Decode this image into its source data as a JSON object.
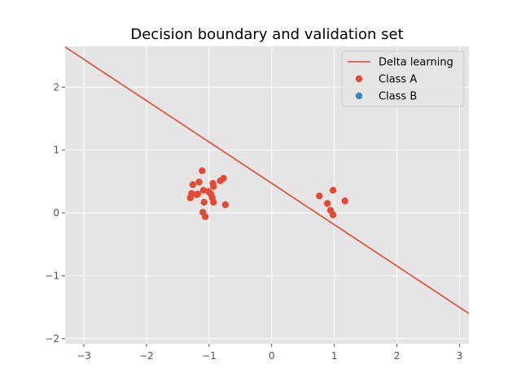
{
  "chart_data": {
    "type": "scatter",
    "title": "Decision boundary and validation set",
    "xlabel": "",
    "ylabel": "",
    "xlim": [
      -3.3,
      3.15
    ],
    "ylim": [
      -2.08,
      2.65
    ],
    "xticks": [
      -3,
      -2,
      -1,
      0,
      1,
      2,
      3
    ],
    "yticks": [
      -2,
      -1,
      0,
      1,
      2
    ],
    "grid": true,
    "legend_position": "upper right",
    "line": {
      "name": "Delta learning",
      "color": "#E24A33",
      "x": [
        -3.3,
        3.15
      ],
      "y": [
        2.64,
        -1.6
      ]
    },
    "series": [
      {
        "name": "Class A",
        "color": "#E24A33",
        "points": [
          [
            -1.11,
            0.67
          ],
          [
            -1.26,
            0.45
          ],
          [
            -1.16,
            0.49
          ],
          [
            -0.94,
            0.47
          ],
          [
            -0.93,
            0.42
          ],
          [
            -0.82,
            0.51
          ],
          [
            -0.77,
            0.55
          ],
          [
            -1.28,
            0.31
          ],
          [
            -1.2,
            0.29
          ],
          [
            -1.18,
            0.3
          ],
          [
            -1.09,
            0.36
          ],
          [
            -1.01,
            0.34
          ],
          [
            -0.97,
            0.3
          ],
          [
            -1.3,
            0.24
          ],
          [
            -0.95,
            0.24
          ],
          [
            -1.08,
            0.17
          ],
          [
            -0.93,
            0.17
          ],
          [
            -0.74,
            0.13
          ],
          [
            -1.1,
            0.01
          ],
          [
            -1.06,
            -0.06
          ],
          [
            0.76,
            0.27
          ],
          [
            0.89,
            0.15
          ],
          [
            0.98,
            0.36
          ],
          [
            1.17,
            0.19
          ],
          [
            0.94,
            0.04
          ],
          [
            0.98,
            -0.03
          ]
        ]
      },
      {
        "name": "Class B",
        "color": "#348ABD",
        "points": []
      }
    ]
  },
  "colors": {
    "axes_bg": "#E5E5E5",
    "grid": "#FFFFFF",
    "tick_label": "#555555",
    "title": "#000000",
    "legend_bg": "#E5E5E5",
    "legend_border": "#CCCCCC"
  }
}
